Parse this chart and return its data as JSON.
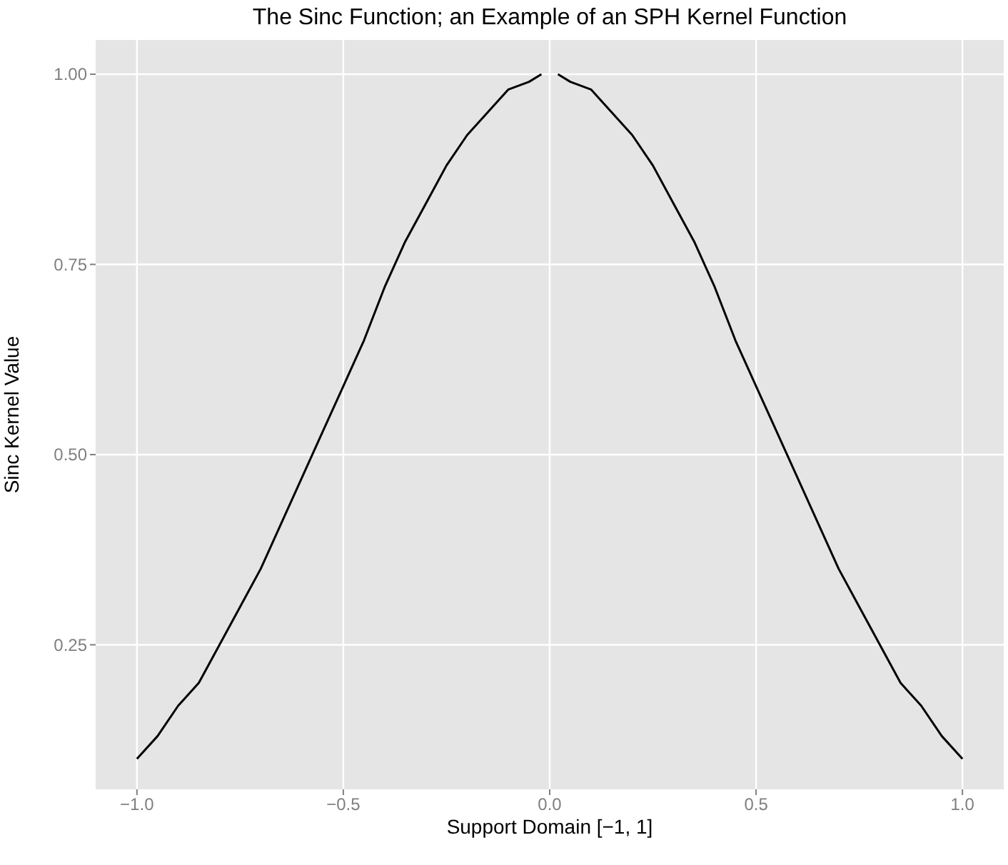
{
  "chart_data": {
    "type": "line",
    "title": "The Sinc Function; an Example of an SPH Kernel Function",
    "xlabel": "Support Domain [−1, 1]",
    "ylabel": "Sinc Kernel Value",
    "x": [
      -1,
      -0.95,
      -0.9,
      -0.85,
      -0.8,
      -0.75,
      -0.7,
      -0.65,
      -0.6,
      -0.55,
      -0.5,
      -0.45,
      -0.4,
      -0.35,
      -0.3,
      -0.25,
      -0.2,
      -0.15,
      -0.1,
      -0.05,
      -0.02,
      0,
      0.02,
      0.05,
      0.1,
      0.15,
      0.2,
      0.25,
      0.3,
      0.35,
      0.4,
      0.45,
      0.5,
      0.55,
      0.6,
      0.65,
      0.7,
      0.75,
      0.8,
      0.85,
      0.9,
      0.95,
      1
    ],
    "series": [
      {
        "color": "#000000",
        "values": [
          0.1,
          0.13,
          0.17,
          0.2,
          0.25,
          0.3,
          0.35,
          0.41,
          0.47,
          0.53,
          0.59,
          0.65,
          0.72,
          0.78,
          0.83,
          0.88,
          0.92,
          0.95,
          0.98,
          0.99,
          1.0,
          null,
          1.0,
          0.99,
          0.98,
          0.95,
          0.92,
          0.88,
          0.83,
          0.78,
          0.72,
          0.65,
          0.59,
          0.53,
          0.47,
          0.41,
          0.35,
          0.3,
          0.25,
          0.2,
          0.17,
          0.13,
          0.1
        ]
      }
    ],
    "xlim": [
      -1.1,
      1.1
    ],
    "xticks": [
      {
        "value": -1,
        "label": "−1.0"
      },
      {
        "value": -0.5,
        "label": "−0.5"
      },
      {
        "value": 0,
        "label": "0.0"
      },
      {
        "value": 0.5,
        "label": "0.5"
      },
      {
        "value": 1,
        "label": "1.0"
      }
    ],
    "ylim": [
      0.06,
      1.045
    ],
    "yticks": [
      {
        "value": 0.25,
        "label": "0.25"
      },
      {
        "value": 0.5,
        "label": "0.50"
      },
      {
        "value": 0.75,
        "label": "0.75"
      },
      {
        "value": 1,
        "label": "1.00"
      }
    ],
    "grid": true,
    "legend": false,
    "marker": "none",
    "line_style": "solid"
  }
}
